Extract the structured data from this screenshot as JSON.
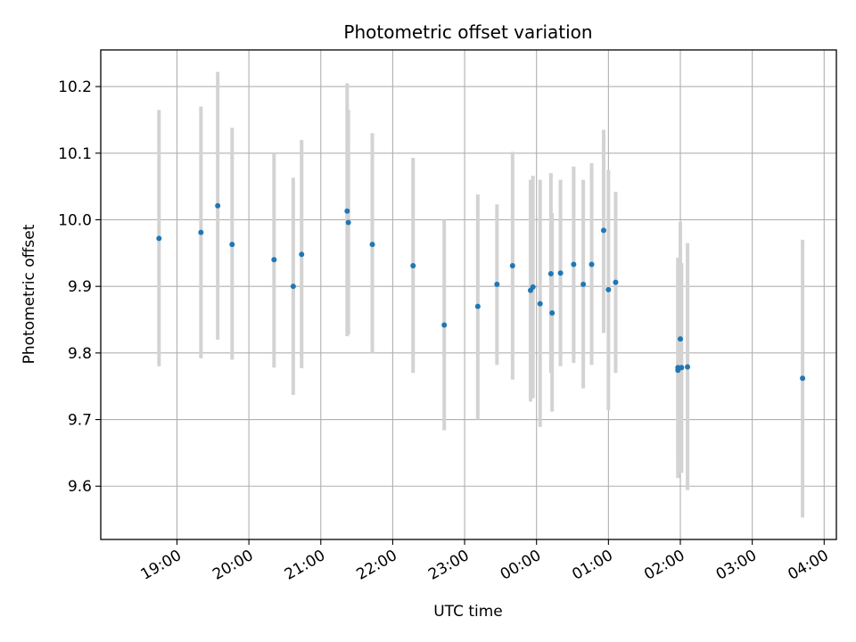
{
  "chart_data": {
    "type": "scatter",
    "title": "Photometric offset variation",
    "xlabel": "UTC time",
    "ylabel": "Photometric offset",
    "grid": true,
    "x_axis": {
      "kind": "time",
      "range_hours": [
        17.94,
        28.17
      ],
      "ticks": [
        {
          "value": 19,
          "label": "19:00"
        },
        {
          "value": 20,
          "label": "20:00"
        },
        {
          "value": 21,
          "label": "21:00"
        },
        {
          "value": 22,
          "label": "22:00"
        },
        {
          "value": 23,
          "label": "23:00"
        },
        {
          "value": 24,
          "label": "00:00"
        },
        {
          "value": 25,
          "label": "01:00"
        },
        {
          "value": 26,
          "label": "02:00"
        },
        {
          "value": 27,
          "label": "03:00"
        },
        {
          "value": 28,
          "label": "04:00"
        }
      ]
    },
    "y_axis": {
      "range": [
        9.52,
        10.255
      ],
      "ticks": [
        {
          "value": 9.6,
          "label": "9.6"
        },
        {
          "value": 9.7,
          "label": "9.7"
        },
        {
          "value": 9.8,
          "label": "9.8"
        },
        {
          "value": 9.9,
          "label": "9.9"
        },
        {
          "value": 10.0,
          "label": "10.0"
        },
        {
          "value": 10.1,
          "label": "10.1"
        },
        {
          "value": 10.2,
          "label": "10.2"
        }
      ]
    },
    "marker_color": "#1f77b4",
    "errorbar_color": "#d3d3d3",
    "points": [
      {
        "time": "18:45",
        "y": 9.972,
        "low": 9.78,
        "high": 10.165
      },
      {
        "time": "19:20",
        "y": 9.981,
        "low": 9.792,
        "high": 10.17
      },
      {
        "time": "19:34",
        "y": 10.021,
        "low": 9.82,
        "high": 10.222
      },
      {
        "time": "19:46",
        "y": 9.963,
        "low": 9.79,
        "high": 10.138
      },
      {
        "time": "20:21",
        "y": 9.94,
        "low": 9.778,
        "high": 10.1
      },
      {
        "time": "20:37",
        "y": 9.9,
        "low": 9.737,
        "high": 10.063
      },
      {
        "time": "20:44",
        "y": 9.948,
        "low": 9.777,
        "high": 10.12
      },
      {
        "time": "21:22",
        "y": 10.013,
        "low": 9.825,
        "high": 10.205
      },
      {
        "time": "21:23",
        "y": 9.996,
        "low": 9.828,
        "high": 10.165
      },
      {
        "time": "21:43",
        "y": 9.963,
        "low": 9.8,
        "high": 10.13
      },
      {
        "time": "22:17",
        "y": 9.931,
        "low": 9.77,
        "high": 10.093
      },
      {
        "time": "22:43",
        "y": 9.842,
        "low": 9.684,
        "high": 10.0
      },
      {
        "time": "23:11",
        "y": 9.87,
        "low": 9.7,
        "high": 10.038
      },
      {
        "time": "23:27",
        "y": 9.903,
        "low": 9.782,
        "high": 10.023
      },
      {
        "time": "23:40",
        "y": 9.931,
        "low": 9.76,
        "high": 10.102
      },
      {
        "time": "23:55",
        "y": 9.894,
        "low": 9.727,
        "high": 10.06
      },
      {
        "time": "23:57",
        "y": 9.899,
        "low": 9.732,
        "high": 10.066
      },
      {
        "time": "00:03",
        "y": 9.874,
        "low": 9.689,
        "high": 10.06
      },
      {
        "time": "00:12",
        "y": 9.919,
        "low": 9.77,
        "high": 10.07
      },
      {
        "time": "00:13",
        "y": 9.86,
        "low": 9.712,
        "high": 10.01
      },
      {
        "time": "00:20",
        "y": 9.92,
        "low": 9.78,
        "high": 10.06
      },
      {
        "time": "00:31",
        "y": 9.933,
        "low": 9.785,
        "high": 10.08
      },
      {
        "time": "00:39",
        "y": 9.903,
        "low": 9.747,
        "high": 10.06
      },
      {
        "time": "00:46",
        "y": 9.933,
        "low": 9.782,
        "high": 10.085
      },
      {
        "time": "00:56",
        "y": 9.984,
        "low": 9.83,
        "high": 10.135
      },
      {
        "time": "01:00",
        "y": 9.895,
        "low": 9.714,
        "high": 10.075
      },
      {
        "time": "01:06",
        "y": 9.906,
        "low": 9.77,
        "high": 10.042
      },
      {
        "time": "01:58",
        "y": 9.774,
        "low": 9.612,
        "high": 9.943
      },
      {
        "time": "01:58",
        "y": 9.778,
        "low": 9.615,
        "high": 9.942
      },
      {
        "time": "02:00",
        "y": 9.821,
        "low": 9.65,
        "high": 9.997
      },
      {
        "time": "02:01",
        "y": 9.778,
        "low": 9.62,
        "high": 9.935
      },
      {
        "time": "02:06",
        "y": 9.779,
        "low": 9.594,
        "high": 9.965
      },
      {
        "time": "03:42",
        "y": 9.762,
        "low": 9.553,
        "high": 9.97
      }
    ]
  }
}
